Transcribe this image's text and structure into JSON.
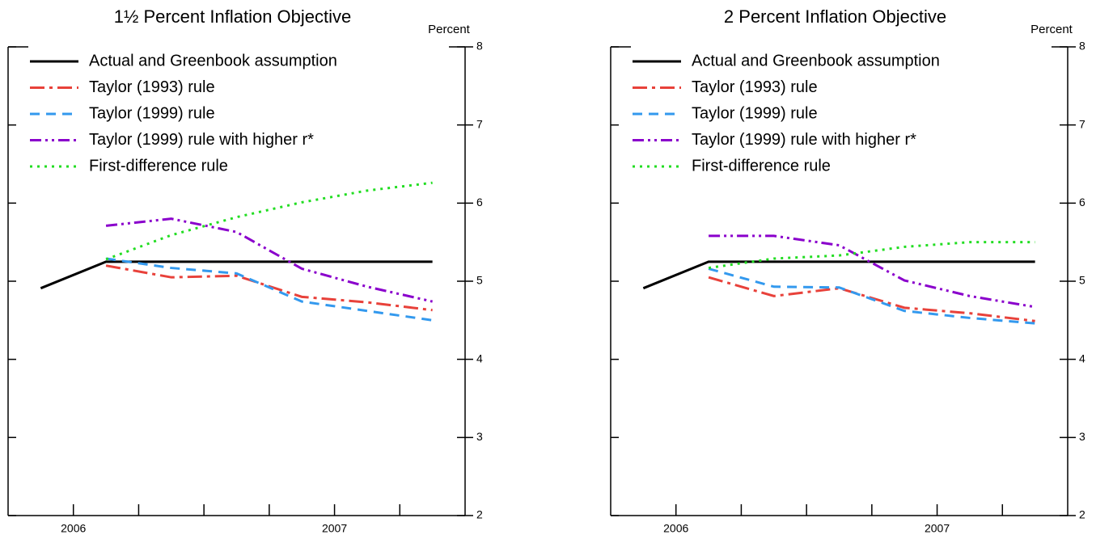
{
  "chart_data": [
    {
      "type": "line",
      "title": "1½ Percent Inflation Objective",
      "ylabel": "Percent",
      "x": [
        0.5,
        1.5,
        2.5,
        3.5,
        4.5,
        5.5,
        6.5
      ],
      "xlim": [
        0,
        7
      ],
      "xticks": [
        {
          "value": 1,
          "label": "2006"
        },
        {
          "value": 2,
          "label": null
        },
        {
          "value": 3,
          "label": null
        },
        {
          "value": 4,
          "label": null
        },
        {
          "value": 5,
          "label": "2007"
        },
        {
          "value": 6,
          "label": null
        }
      ],
      "ylim": [
        2,
        8
      ],
      "yticks": [
        2,
        3,
        4,
        5,
        6,
        7,
        8
      ],
      "legend": "upper left",
      "series": [
        {
          "name": "Actual and Greenbook assumption",
          "color": "#000000",
          "dash": "solid",
          "values": [
            4.91,
            5.25,
            5.25,
            5.25,
            5.25,
            5.25,
            5.25
          ]
        },
        {
          "name": "Taylor (1993) rule",
          "color": "#e8413a",
          "dash": "dashdot",
          "values": [
            null,
            5.2,
            5.05,
            5.07,
            4.8,
            4.73,
            4.63
          ]
        },
        {
          "name": "Taylor (1999) rule",
          "color": "#3399ee",
          "dash": "dashed",
          "values": [
            null,
            5.29,
            5.17,
            5.1,
            4.74,
            4.62,
            4.5
          ]
        },
        {
          "name": "Taylor (1999) rule with higher r*",
          "color": "#8a00cc",
          "dash": "dashdotdot",
          "values": [
            null,
            5.71,
            5.8,
            5.63,
            5.16,
            4.93,
            4.74
          ]
        },
        {
          "name": "First-difference rule",
          "color": "#22dd22",
          "dash": "dotted",
          "values": [
            null,
            5.28,
            5.59,
            5.82,
            6.01,
            6.16,
            6.26
          ]
        }
      ]
    },
    {
      "type": "line",
      "title": "2 Percent Inflation Objective",
      "ylabel": "Percent",
      "x": [
        0.5,
        1.5,
        2.5,
        3.5,
        4.5,
        5.5,
        6.5
      ],
      "xlim": [
        0,
        7
      ],
      "xticks": [
        {
          "value": 1,
          "label": "2006"
        },
        {
          "value": 2,
          "label": null
        },
        {
          "value": 3,
          "label": null
        },
        {
          "value": 4,
          "label": null
        },
        {
          "value": 5,
          "label": "2007"
        },
        {
          "value": 6,
          "label": null
        }
      ],
      "ylim": [
        2,
        8
      ],
      "yticks": [
        2,
        3,
        4,
        5,
        6,
        7,
        8
      ],
      "legend": "upper left",
      "series": [
        {
          "name": "Actual and Greenbook assumption",
          "color": "#000000",
          "dash": "solid",
          "values": [
            4.91,
            5.25,
            5.25,
            5.25,
            5.25,
            5.25,
            5.25
          ]
        },
        {
          "name": "Taylor (1993) rule",
          "color": "#e8413a",
          "dash": "dashdot",
          "values": [
            null,
            5.05,
            4.81,
            4.91,
            4.66,
            4.59,
            4.49
          ]
        },
        {
          "name": "Taylor (1999) rule",
          "color": "#3399ee",
          "dash": "dashed",
          "values": [
            null,
            5.16,
            4.93,
            4.92,
            4.62,
            4.53,
            4.46
          ]
        },
        {
          "name": "Taylor (1999) rule with higher r*",
          "color": "#8a00cc",
          "dash": "dashdotdot",
          "values": [
            null,
            5.58,
            5.58,
            5.46,
            5.01,
            4.81,
            4.67
          ]
        },
        {
          "name": "First-difference rule",
          "color": "#22dd22",
          "dash": "dotted",
          "values": [
            null,
            5.17,
            5.29,
            5.33,
            5.44,
            5.5,
            5.5
          ]
        }
      ]
    }
  ]
}
